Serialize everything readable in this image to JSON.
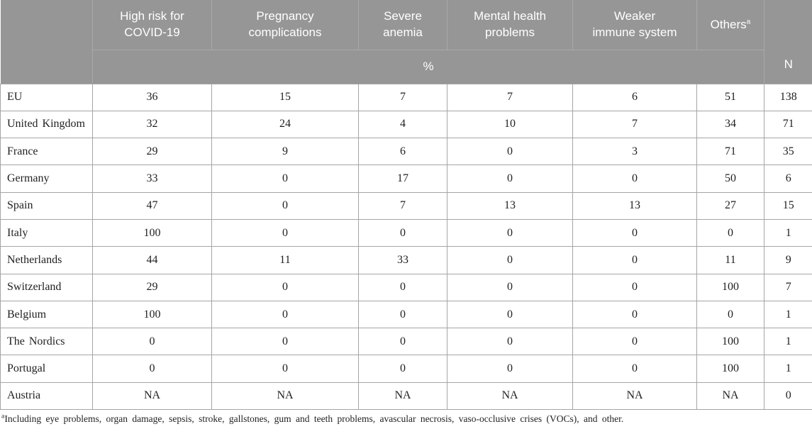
{
  "colors": {
    "header_bg": "#969696",
    "header_divider": "#a9a9a9",
    "header_text": "#ffffff",
    "body_border": "#a5a5a5",
    "body_text": "#1f1f1f"
  },
  "table": {
    "percent_label": "%",
    "n_label": "N",
    "col_headers": [
      {
        "label": "High risk for COVID-19",
        "lines": [
          "High risk for",
          "COVID-19"
        ]
      },
      {
        "label": "Pregnancy complications",
        "lines": [
          "Pregnancy",
          "complications"
        ]
      },
      {
        "label": "Severe anemia",
        "lines": [
          "Severe",
          "anemia"
        ]
      },
      {
        "label": "Mental health problems",
        "lines": [
          "Mental health",
          "problems"
        ]
      },
      {
        "label": "Weaker immune system",
        "lines": [
          "Weaker",
          "immune system"
        ]
      },
      {
        "label": "Others",
        "lines": [
          "Others"
        ],
        "sup": "a"
      }
    ],
    "rows": [
      {
        "label": "EU",
        "values": [
          "36",
          "15",
          "7",
          "7",
          "6",
          "51"
        ],
        "n": "138"
      },
      {
        "label": "United Kingdom",
        "values": [
          "32",
          "24",
          "4",
          "10",
          "7",
          "34"
        ],
        "n": "71"
      },
      {
        "label": "France",
        "values": [
          "29",
          "9",
          "6",
          "0",
          "3",
          "71"
        ],
        "n": "35"
      },
      {
        "label": "Germany",
        "values": [
          "33",
          "0",
          "17",
          "0",
          "0",
          "50"
        ],
        "n": "6"
      },
      {
        "label": "Spain",
        "values": [
          "47",
          "0",
          "7",
          "13",
          "13",
          "27"
        ],
        "n": "15"
      },
      {
        "label": "Italy",
        "values": [
          "100",
          "0",
          "0",
          "0",
          "0",
          "0"
        ],
        "n": "1"
      },
      {
        "label": "Netherlands",
        "values": [
          "44",
          "11",
          "33",
          "0",
          "0",
          "11"
        ],
        "n": "9"
      },
      {
        "label": "Switzerland",
        "values": [
          "29",
          "0",
          "0",
          "0",
          "0",
          "100"
        ],
        "n": "7"
      },
      {
        "label": "Belgium",
        "values": [
          "100",
          "0",
          "0",
          "0",
          "0",
          "0"
        ],
        "n": "1"
      },
      {
        "label": "The Nordics",
        "values": [
          "0",
          "0",
          "0",
          "0",
          "0",
          "100"
        ],
        "n": "1"
      },
      {
        "label": "Portugal",
        "values": [
          "0",
          "0",
          "0",
          "0",
          "0",
          "100"
        ],
        "n": "1"
      },
      {
        "label": "Austria",
        "values": [
          "NA",
          "NA",
          "NA",
          "NA",
          "NA",
          "NA"
        ],
        "n": "0"
      }
    ],
    "footnote_marker": "a",
    "footnote_text": "Including eye problems, organ damage, sepsis, stroke, gallstones, gum and teeth problems, avascular necrosis, vaso-occlusive crises (VOCs), and other."
  }
}
